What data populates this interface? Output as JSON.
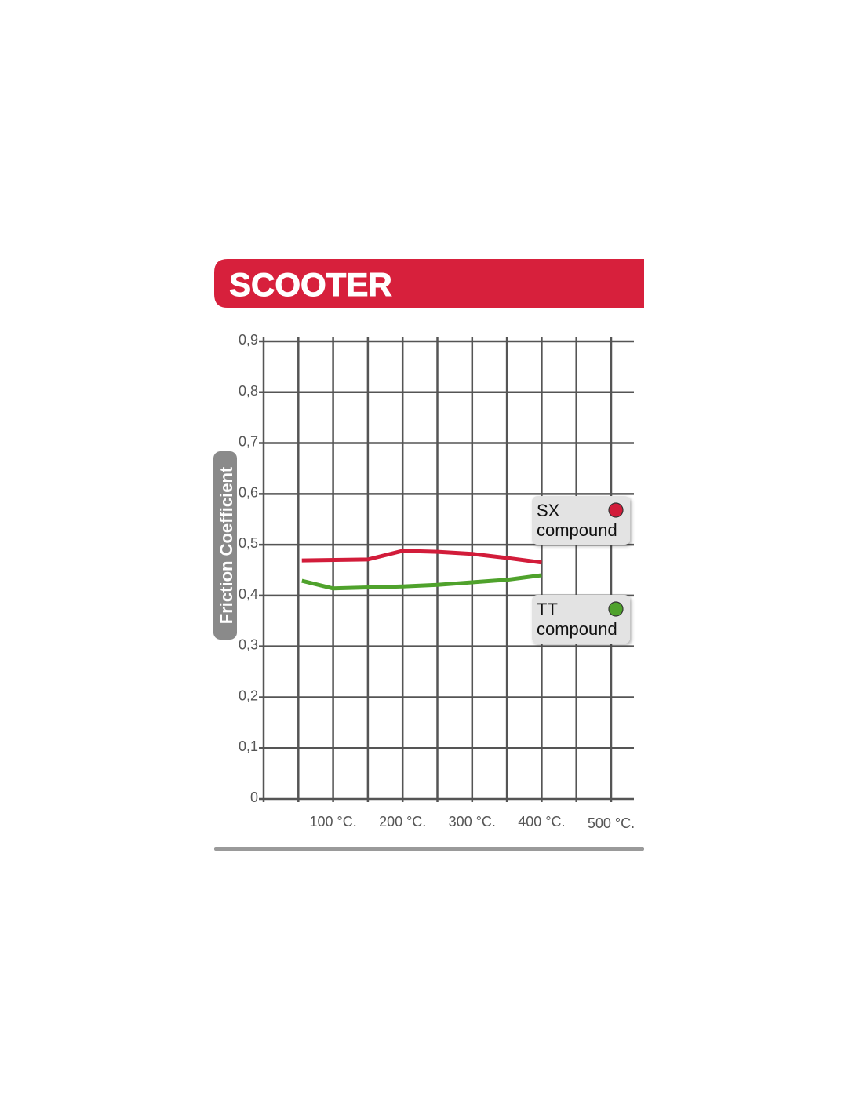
{
  "chart_data": {
    "type": "line",
    "title": "SCOOTER",
    "xlabel": "",
    "ylabel": "Friction Coefficient",
    "xlim": [
      0,
      500
    ],
    "ylim": [
      0,
      0.9
    ],
    "grid": true,
    "legend_placement": "right",
    "x_ticks": [
      {
        "value": 100,
        "label": "100 °C."
      },
      {
        "value": 200,
        "label": "200 °C."
      },
      {
        "value": 300,
        "label": "300 °C."
      },
      {
        "value": 400,
        "label": "400 °C."
      },
      {
        "value": 500,
        "label": "500 °C."
      }
    ],
    "y_ticks": [
      {
        "value": 0,
        "label": "0"
      },
      {
        "value": 0.1,
        "label": "0,1"
      },
      {
        "value": 0.2,
        "label": "0,2"
      },
      {
        "value": 0.3,
        "label": "0,3"
      },
      {
        "value": 0.4,
        "label": "0,4"
      },
      {
        "value": 0.5,
        "label": "0,5"
      },
      {
        "value": 0.6,
        "label": "0,6"
      },
      {
        "value": 0.7,
        "label": "0,7"
      },
      {
        "value": 0.8,
        "label": "0,8"
      },
      {
        "value": 0.9,
        "label": "0,9"
      }
    ],
    "series": [
      {
        "name": "SX compound",
        "label_line1": "SX",
        "label_line2": "compound",
        "color": "#d21c3a",
        "x": [
          55,
          150,
          200,
          250,
          300,
          350,
          400
        ],
        "y": [
          0.469,
          0.471,
          0.488,
          0.486,
          0.482,
          0.474,
          0.465
        ]
      },
      {
        "name": "TT compound",
        "label_line1": "TT",
        "label_line2": "compound",
        "color": "#4fa22c",
        "x": [
          55,
          100,
          200,
          250,
          300,
          350,
          400
        ],
        "y": [
          0.429,
          0.414,
          0.418,
          0.421,
          0.426,
          0.431,
          0.44
        ]
      }
    ]
  },
  "colors": {
    "banner": "#d7203c",
    "grid": "#555555",
    "ylabel_bg": "#8a8a8a",
    "footer_rule": "#9a9a9a"
  }
}
